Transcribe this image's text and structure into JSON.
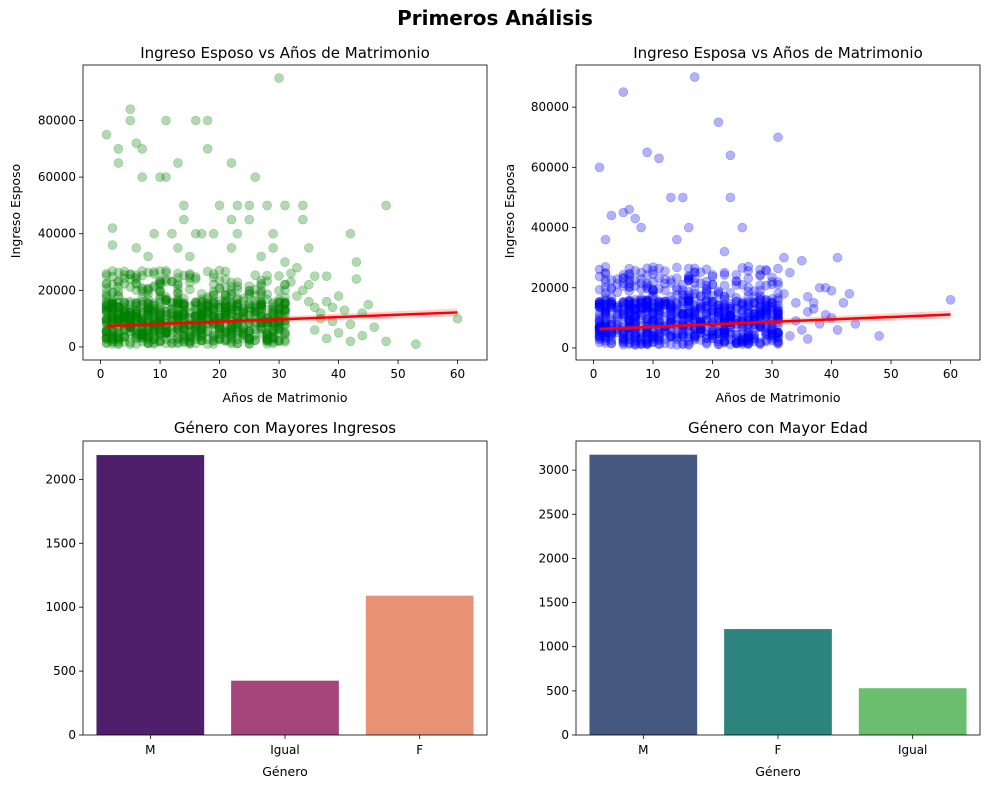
{
  "figure": {
    "title": "Primeros Análisis"
  },
  "chart_data": [
    {
      "type": "scatter",
      "title": "Ingreso Esposo vs Años de Matrimonio",
      "xlabel": "Años de Matrimonio",
      "ylabel": "Ingreso Esposo",
      "xlim": [
        -2.95,
        64.95
      ],
      "ylim": [
        -4600,
        99600
      ],
      "xticks": [
        0,
        10,
        20,
        30,
        40,
        50,
        60
      ],
      "yticks": [
        0,
        20000,
        40000,
        60000,
        80000
      ],
      "color": "#008000",
      "alpha": 0.3,
      "regression": {
        "color": "#ff0000",
        "x": [
          1,
          60
        ],
        "y": [
          7400,
          12200
        ]
      },
      "points": [
        [
          30,
          95000
        ],
        [
          5,
          84000
        ],
        [
          1,
          75000
        ],
        [
          5,
          80000
        ],
        [
          11,
          80000
        ],
        [
          16,
          80000
        ],
        [
          18,
          80000
        ],
        [
          3,
          70000
        ],
        [
          6,
          72000
        ],
        [
          7,
          70000
        ],
        [
          18,
          70000
        ],
        [
          3,
          65000
        ],
        [
          13,
          65000
        ],
        [
          22,
          65000
        ],
        [
          7,
          60000
        ],
        [
          10,
          60000
        ],
        [
          11,
          60000
        ],
        [
          26,
          60000
        ],
        [
          14,
          50000
        ],
        [
          20,
          50000
        ],
        [
          23,
          50000
        ],
        [
          25,
          50000
        ],
        [
          28,
          50000
        ],
        [
          31,
          50000
        ],
        [
          34,
          50000
        ],
        [
          48,
          50000
        ],
        [
          14,
          45000
        ],
        [
          22,
          45000
        ],
        [
          25,
          45000
        ],
        [
          34,
          45000
        ],
        [
          2,
          42000
        ],
        [
          9,
          40000
        ],
        [
          12,
          40000
        ],
        [
          16,
          40000
        ],
        [
          17,
          40000
        ],
        [
          19,
          40000
        ],
        [
          23,
          40000
        ],
        [
          29,
          40000
        ],
        [
          42,
          40000
        ],
        [
          2,
          36000
        ],
        [
          6,
          35000
        ],
        [
          13,
          35000
        ],
        [
          22,
          35000
        ],
        [
          29,
          35000
        ],
        [
          35,
          35000
        ],
        [
          8,
          32000
        ],
        [
          15,
          32000
        ],
        [
          27,
          32000
        ],
        [
          43,
          30000
        ],
        [
          31,
          30000
        ],
        [
          33,
          28000
        ],
        [
          36,
          25000
        ],
        [
          38,
          25000
        ],
        [
          43,
          24000
        ],
        [
          32,
          23000
        ],
        [
          35,
          22000
        ],
        [
          40,
          18000
        ],
        [
          33,
          18000
        ],
        [
          38,
          16000
        ],
        [
          45,
          15000
        ],
        [
          36,
          14000
        ],
        [
          41,
          13000
        ],
        [
          44,
          12000
        ],
        [
          37,
          10000
        ],
        [
          39,
          9000
        ],
        [
          42,
          8000
        ],
        [
          46,
          7000
        ],
        [
          36,
          6000
        ],
        [
          40,
          5000
        ],
        [
          44,
          4000
        ],
        [
          38,
          3000
        ],
        [
          42,
          2000
        ],
        [
          48,
          2000
        ],
        [
          53,
          1000
        ],
        [
          60,
          10000
        ],
        [
          37,
          12000
        ],
        [
          34,
          20000
        ],
        [
          32,
          26000
        ],
        [
          35,
          16000
        ],
        [
          39,
          14000
        ]
      ]
    },
    {
      "type": "scatter",
      "title": "Ingreso Esposa vs Años de Matrimonio",
      "xlabel": "Años de Matrimonio",
      "ylabel": "Ingreso Esposa",
      "xlim": [
        -2.95,
        64.95
      ],
      "ylim": [
        -4000,
        94000
      ],
      "xticks": [
        0,
        10,
        20,
        30,
        40,
        50,
        60
      ],
      "yticks": [
        0,
        20000,
        40000,
        60000,
        80000
      ],
      "color": "#0000ff",
      "alpha": 0.3,
      "regression": {
        "color": "#ff0000",
        "x": [
          1,
          60
        ],
        "y": [
          6300,
          11100
        ]
      },
      "points": [
        [
          17,
          90000
        ],
        [
          5,
          85000
        ],
        [
          21,
          75000
        ],
        [
          31,
          70000
        ],
        [
          23,
          64000
        ],
        [
          9,
          65000
        ],
        [
          11,
          63000
        ],
        [
          1,
          60000
        ],
        [
          13,
          50000
        ],
        [
          15,
          50000
        ],
        [
          23,
          50000
        ],
        [
          6,
          46000
        ],
        [
          5,
          45000
        ],
        [
          3,
          44000
        ],
        [
          7,
          43000
        ],
        [
          8,
          40000
        ],
        [
          16,
          40000
        ],
        [
          25,
          40000
        ],
        [
          2,
          36000
        ],
        [
          14,
          36000
        ],
        [
          22,
          32000
        ],
        [
          26,
          27000
        ],
        [
          32,
          30000
        ],
        [
          35,
          29000
        ],
        [
          41,
          30000
        ],
        [
          38,
          20000
        ],
        [
          39,
          20000
        ],
        [
          40,
          19000
        ],
        [
          36,
          17000
        ],
        [
          43,
          18000
        ],
        [
          34,
          15000
        ],
        [
          37,
          15000
        ],
        [
          42,
          15000
        ],
        [
          36,
          12000
        ],
        [
          40,
          10000
        ],
        [
          38,
          8000
        ],
        [
          35,
          6000
        ],
        [
          44,
          8000
        ],
        [
          48,
          4000
        ],
        [
          60,
          16000
        ],
        [
          33,
          25000
        ],
        [
          28,
          24000
        ],
        [
          30,
          22000
        ],
        [
          32,
          18000
        ],
        [
          37,
          13000
        ],
        [
          39,
          11000
        ],
        [
          34,
          9000
        ],
        [
          41,
          6000
        ],
        [
          33,
          4000
        ],
        [
          36,
          3000
        ]
      ]
    },
    {
      "type": "bar",
      "title": "Género con Mayores Ingresos",
      "xlabel": "Género",
      "ylabel": "",
      "categories": [
        "M",
        "Igual",
        "F"
      ],
      "values": [
        2190,
        425,
        1090
      ],
      "colors": [
        "#4f1f6b",
        "#a3457a",
        "#e79275"
      ],
      "ylim": [
        0,
        2300
      ],
      "yticks": [
        0,
        500,
        1000,
        1500,
        2000
      ]
    },
    {
      "type": "bar",
      "title": "Género con Mayor Edad",
      "xlabel": "Género",
      "ylabel": "",
      "categories": [
        "M",
        "F",
        "Igual"
      ],
      "values": [
        3175,
        1200,
        530
      ],
      "colors": [
        "#45587f",
        "#2d847e",
        "#6bbe6d"
      ],
      "ylim": [
        0,
        3330
      ],
      "yticks": [
        0,
        500,
        1000,
        1500,
        2000,
        2500,
        3000
      ]
    }
  ]
}
